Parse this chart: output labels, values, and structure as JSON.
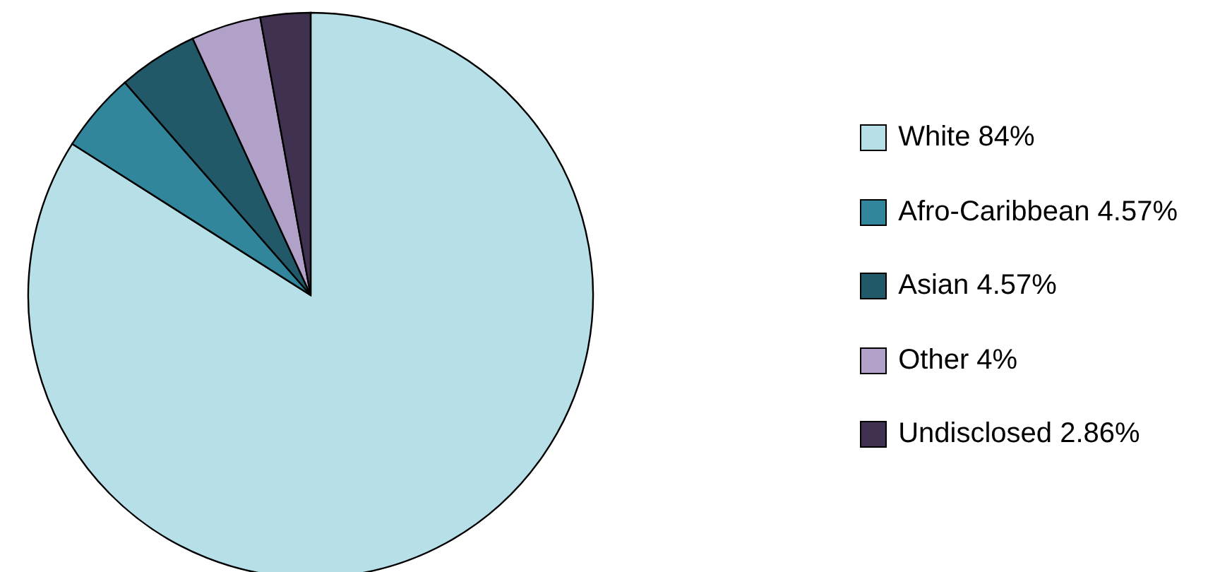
{
  "chart_data": {
    "type": "pie",
    "categories": [
      "White 84%",
      "Afro-Caribbean 4.57%",
      "Asian 4.57%",
      "Other 4%",
      "Undisclosed 2.86%"
    ],
    "values": [
      84,
      4.57,
      4.57,
      4,
      2.86
    ],
    "colors": [
      "#b7dfe8",
      "#31869b",
      "#215968",
      "#b1a0c7",
      "#403151"
    ],
    "legend": "right"
  }
}
